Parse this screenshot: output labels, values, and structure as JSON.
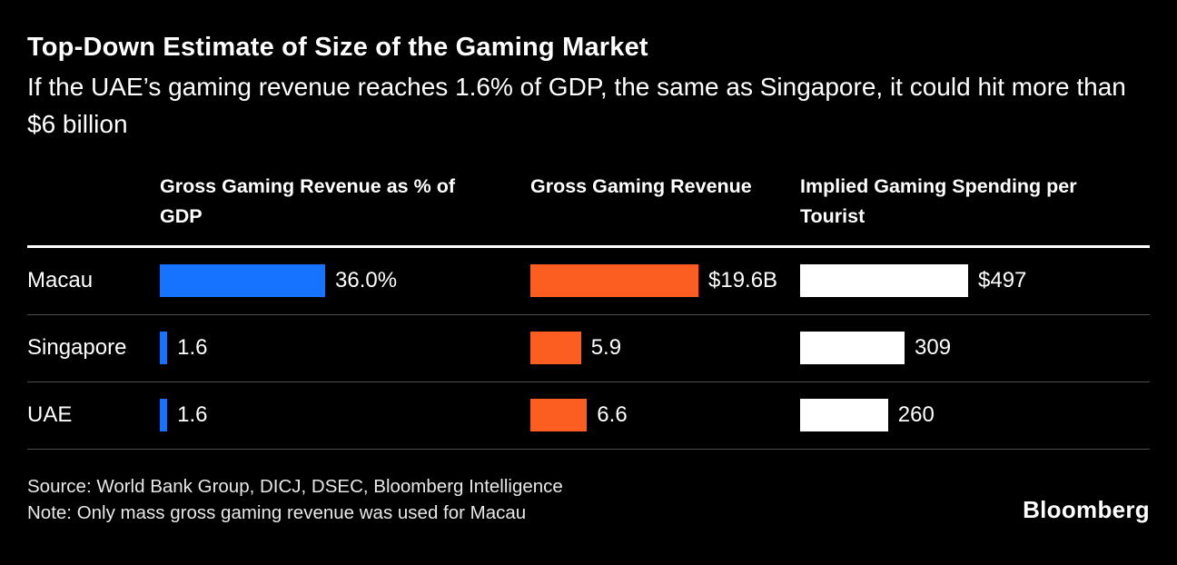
{
  "chart_data": {
    "type": "bar",
    "title": "Top-Down Estimate of Size of the Gaming Market",
    "subtitle": "If the UAE’s gaming revenue reaches 1.6% of GDP, the same as Singapore, it could hit more than $6 billion",
    "categories": [
      "Macau",
      "Singapore",
      "UAE"
    ],
    "series": [
      {
        "name": "Gross Gaming Revenue as % of GDP",
        "values": [
          36.0,
          1.6,
          1.6
        ],
        "labels": [
          "36.0%",
          "1.6",
          "1.6"
        ],
        "color": "#1673ff"
      },
      {
        "name": "Gross Gaming Revenue",
        "values": [
          19.6,
          5.9,
          6.6
        ],
        "labels": [
          "$19.6B",
          "5.9",
          "6.6"
        ],
        "color": "#fc5e22"
      },
      {
        "name": "Implied Gaming Spending per Tourist",
        "values": [
          497,
          309,
          260
        ],
        "labels": [
          "$497",
          "309",
          "260"
        ],
        "color": "#ffffff"
      }
    ],
    "source": "Source: World Bank Group, DICJ, DSEC, Bloomberg Intelligence",
    "note": "Note: Only mass gross gaming revenue was used for Macau",
    "legend": "none",
    "grid": false,
    "background": "#000000"
  },
  "footer": {
    "logo": "Bloomberg"
  }
}
